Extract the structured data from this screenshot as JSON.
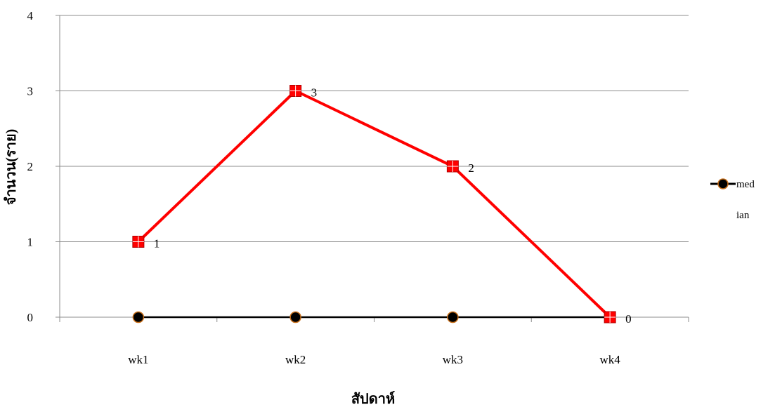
{
  "chart_data": {
    "type": "line",
    "title": "",
    "xlabel": "สัปดาห์",
    "ylabel": "จำนวน(ราย)",
    "categories": [
      "wk1",
      "wk2",
      "wk3",
      "wk4"
    ],
    "ylim": [
      0,
      4
    ],
    "yticks": [
      "0",
      "1",
      "2",
      "3",
      "4"
    ],
    "grid": true,
    "legend_position": "right",
    "series": [
      {
        "name": "",
        "values": [
          1,
          3,
          2,
          0
        ],
        "data_labels": [
          "1",
          "3",
          "2",
          "0"
        ],
        "color": "#ff0000",
        "marker": "square"
      },
      {
        "name": "med ian",
        "name_lines": [
          "med",
          "ian"
        ],
        "values": [
          0,
          0,
          0,
          0
        ],
        "color": "#000000",
        "marker_fill": "#000000",
        "marker_edge": "#c9701a",
        "marker": "circle"
      }
    ]
  }
}
